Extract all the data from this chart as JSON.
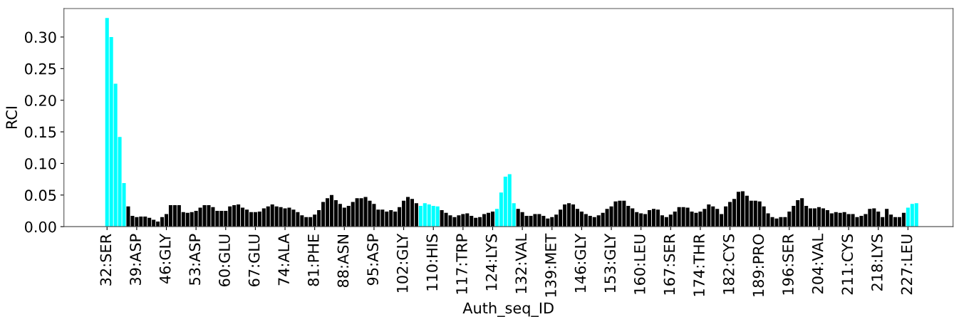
{
  "chart_data": {
    "type": "bar",
    "xlabel": "Auth_seq_ID",
    "ylabel": "RCI",
    "categories": [
      "32:SER",
      null,
      null,
      null,
      null,
      null,
      null,
      "39:ASP",
      null,
      null,
      null,
      null,
      null,
      null,
      "46:GLY",
      null,
      null,
      null,
      null,
      null,
      null,
      "53:ASP",
      null,
      null,
      null,
      null,
      null,
      null,
      "60:GLU",
      null,
      null,
      null,
      null,
      null,
      null,
      "67:GLU",
      null,
      null,
      null,
      null,
      null,
      null,
      "74:ALA",
      null,
      null,
      null,
      null,
      null,
      null,
      "81:PHE",
      null,
      null,
      null,
      null,
      null,
      null,
      "88:ASN",
      null,
      null,
      null,
      null,
      null,
      null,
      "95:ASP",
      null,
      null,
      null,
      null,
      null,
      null,
      "102:GLY",
      null,
      null,
      null,
      null,
      null,
      null,
      "110:HIS",
      null,
      null,
      null,
      null,
      null,
      null,
      "117:TRP",
      null,
      null,
      null,
      null,
      null,
      null,
      "124:LYS",
      null,
      null,
      null,
      null,
      null,
      null,
      "132:VAL",
      null,
      null,
      null,
      null,
      null,
      null,
      "139:MET",
      null,
      null,
      null,
      null,
      null,
      null,
      "146:GLY",
      null,
      null,
      null,
      null,
      null,
      null,
      "153:GLY",
      null,
      null,
      null,
      null,
      null,
      null,
      "160:LEU",
      null,
      null,
      null,
      null,
      null,
      null,
      "167:SER",
      null,
      null,
      null,
      null,
      null,
      null,
      "174:THR",
      null,
      null,
      null,
      null,
      null,
      null,
      "182:CYS",
      null,
      null,
      null,
      null,
      null,
      null,
      "189:PRO",
      null,
      null,
      null,
      null,
      null,
      null,
      "196:SER",
      null,
      null,
      null,
      null,
      null,
      null,
      "204:VAL",
      null,
      null,
      null,
      null,
      null,
      null,
      "211:CYS",
      null,
      null,
      null,
      null,
      null,
      null,
      "218:LYS",
      null,
      null,
      null,
      null,
      null,
      null,
      "227:LEU",
      null,
      null
    ],
    "values": [
      0.33,
      0.3,
      0.226,
      0.142,
      0.069,
      0.032,
      0.017,
      0.015,
      0.016,
      0.016,
      0.014,
      0.011,
      0.008,
      0.015,
      0.02,
      0.034,
      0.034,
      0.034,
      0.023,
      0.022,
      0.023,
      0.025,
      0.03,
      0.034,
      0.034,
      0.031,
      0.025,
      0.025,
      0.025,
      0.032,
      0.034,
      0.035,
      0.03,
      0.027,
      0.023,
      0.023,
      0.024,
      0.029,
      0.032,
      0.035,
      0.032,
      0.031,
      0.029,
      0.03,
      0.027,
      0.023,
      0.018,
      0.015,
      0.015,
      0.019,
      0.026,
      0.039,
      0.045,
      0.05,
      0.042,
      0.036,
      0.03,
      0.033,
      0.039,
      0.045,
      0.045,
      0.047,
      0.041,
      0.036,
      0.027,
      0.027,
      0.024,
      0.026,
      0.024,
      0.031,
      0.041,
      0.047,
      0.044,
      0.037,
      0.033,
      0.037,
      0.035,
      0.033,
      0.032,
      0.026,
      0.022,
      0.018,
      0.015,
      0.018,
      0.02,
      0.021,
      0.017,
      0.014,
      0.015,
      0.02,
      0.022,
      0.024,
      0.028,
      0.054,
      0.079,
      0.083,
      0.037,
      0.028,
      0.023,
      0.017,
      0.017,
      0.02,
      0.02,
      0.017,
      0.013,
      0.015,
      0.019,
      0.027,
      0.035,
      0.037,
      0.035,
      0.028,
      0.024,
      0.02,
      0.017,
      0.015,
      0.018,
      0.022,
      0.028,
      0.032,
      0.04,
      0.041,
      0.041,
      0.033,
      0.029,
      0.023,
      0.021,
      0.02,
      0.026,
      0.028,
      0.027,
      0.018,
      0.015,
      0.019,
      0.024,
      0.031,
      0.031,
      0.03,
      0.024,
      0.022,
      0.024,
      0.028,
      0.035,
      0.032,
      0.028,
      0.02,
      0.032,
      0.039,
      0.044,
      0.055,
      0.056,
      0.049,
      0.041,
      0.041,
      0.04,
      0.032,
      0.021,
      0.015,
      0.013,
      0.015,
      0.015,
      0.024,
      0.033,
      0.042,
      0.045,
      0.033,
      0.029,
      0.029,
      0.031,
      0.029,
      0.026,
      0.021,
      0.023,
      0.022,
      0.023,
      0.02,
      0.02,
      0.015,
      0.017,
      0.02,
      0.028,
      0.029,
      0.024,
      0.015,
      0.028,
      0.019,
      0.015,
      0.015,
      0.022,
      0.03,
      0.036,
      0.037
    ],
    "colors": [
      "#00ffff",
      "#00ffff",
      "#00ffff",
      "#00ffff",
      "#00ffff",
      "#000000",
      "#000000",
      "#000000",
      "#000000",
      "#000000",
      "#000000",
      "#000000",
      "#000000",
      "#000000",
      "#000000",
      "#000000",
      "#000000",
      "#000000",
      "#000000",
      "#000000",
      "#000000",
      "#000000",
      "#000000",
      "#000000",
      "#000000",
      "#000000",
      "#000000",
      "#000000",
      "#000000",
      "#000000",
      "#000000",
      "#000000",
      "#000000",
      "#000000",
      "#000000",
      "#000000",
      "#000000",
      "#000000",
      "#000000",
      "#000000",
      "#000000",
      "#000000",
      "#000000",
      "#000000",
      "#000000",
      "#000000",
      "#000000",
      "#000000",
      "#000000",
      "#000000",
      "#000000",
      "#000000",
      "#000000",
      "#000000",
      "#000000",
      "#000000",
      "#000000",
      "#000000",
      "#000000",
      "#000000",
      "#000000",
      "#000000",
      "#000000",
      "#000000",
      "#000000",
      "#000000",
      "#000000",
      "#000000",
      "#000000",
      "#000000",
      "#000000",
      "#000000",
      "#000000",
      "#000000",
      "#00ffff",
      "#00ffff",
      "#00ffff",
      "#00ffff",
      "#00ffff",
      "#000000",
      "#000000",
      "#000000",
      "#000000",
      "#000000",
      "#000000",
      "#000000",
      "#000000",
      "#000000",
      "#000000",
      "#000000",
      "#000000",
      "#000000",
      "#00ffff",
      "#00ffff",
      "#00ffff",
      "#00ffff",
      "#00ffff",
      "#000000",
      "#000000",
      "#000000",
      "#000000",
      "#000000",
      "#000000",
      "#000000",
      "#000000",
      "#000000",
      "#000000",
      "#000000",
      "#000000",
      "#000000",
      "#000000",
      "#000000",
      "#000000",
      "#000000",
      "#000000",
      "#000000",
      "#000000",
      "#000000",
      "#000000",
      "#000000",
      "#000000",
      "#000000",
      "#000000",
      "#000000",
      "#000000",
      "#000000",
      "#000000",
      "#000000",
      "#000000",
      "#000000",
      "#000000",
      "#000000",
      "#000000",
      "#000000",
      "#000000",
      "#000000",
      "#000000",
      "#000000",
      "#000000",
      "#000000",
      "#000000",
      "#000000",
      "#000000",
      "#000000",
      "#000000",
      "#000000",
      "#000000",
      "#000000",
      "#000000",
      "#000000",
      "#000000",
      "#000000",
      "#000000",
      "#000000",
      "#000000",
      "#000000",
      "#000000",
      "#000000",
      "#000000",
      "#000000",
      "#000000",
      "#000000",
      "#000000",
      "#000000",
      "#000000",
      "#000000",
      "#000000",
      "#000000",
      "#000000",
      "#000000",
      "#000000",
      "#000000",
      "#000000",
      "#000000",
      "#000000",
      "#000000",
      "#000000",
      "#000000",
      "#000000",
      "#000000",
      "#000000",
      "#000000",
      "#000000",
      "#000000",
      "#000000",
      "#000000",
      "#000000",
      "#000000",
      "#000000",
      "#00ffff",
      "#00ffff",
      "#00ffff"
    ],
    "ylim": [
      0,
      0.345
    ],
    "yticks": [
      {
        "value": 0,
        "label": "0.00"
      },
      {
        "value": 0.05,
        "label": "0.05"
      },
      {
        "value": 0.1,
        "label": "0.10"
      },
      {
        "value": 0.15,
        "label": "0.15"
      },
      {
        "value": 0.2,
        "label": "0.20"
      },
      {
        "value": 0.25,
        "label": "0.25"
      },
      {
        "value": 0.3,
        "label": "0.30"
      }
    ]
  }
}
